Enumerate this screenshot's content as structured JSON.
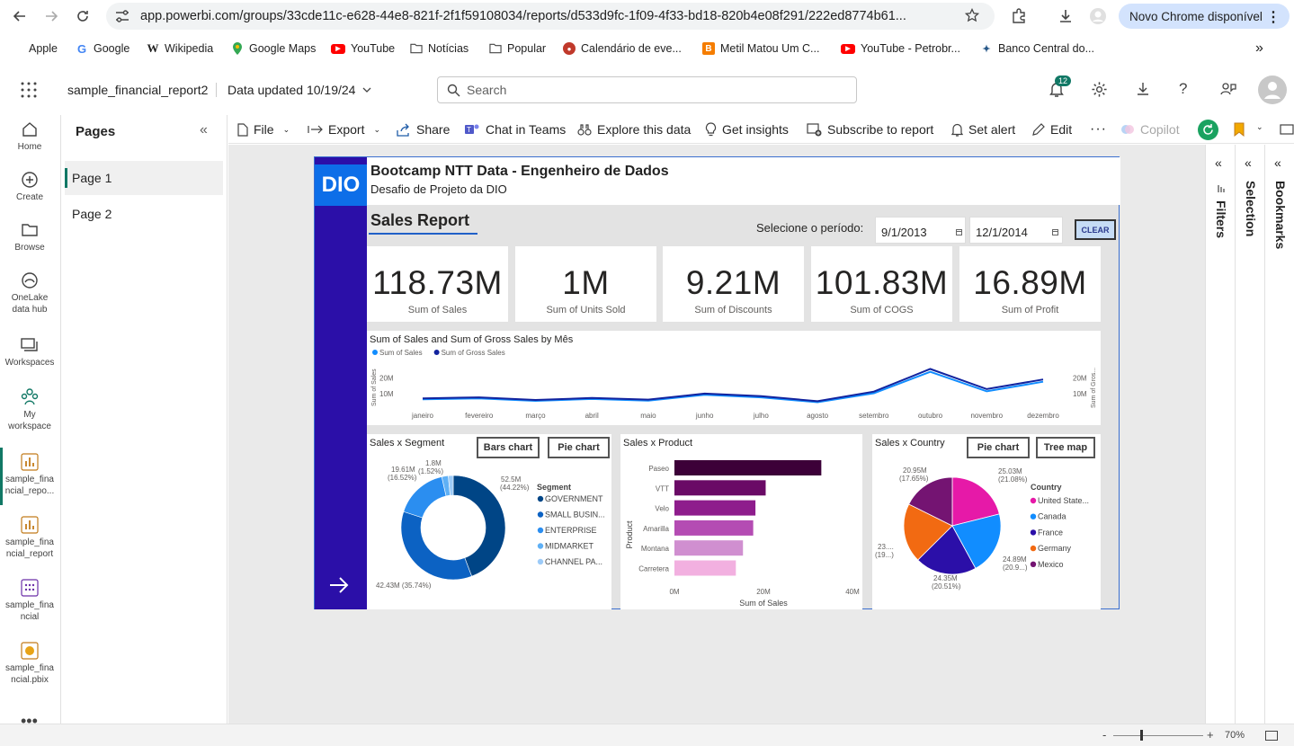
{
  "browser": {
    "url": "app.powerbi.com/groups/33cde11c-e628-44e8-821f-2f1f59108034/reports/d533d9fc-1f09-4f33-bd18-820b4e08f291/222ed8774b61...",
    "update_label": "Novo Chrome disponível",
    "bookmarks": [
      {
        "label": "Apple",
        "icon": "apple-icon"
      },
      {
        "label": "Google",
        "icon": "google-icon"
      },
      {
        "label": "Wikipedia",
        "icon": "wikipedia-icon"
      },
      {
        "label": "Google Maps",
        "icon": "maps-icon"
      },
      {
        "label": "YouTube",
        "icon": "youtube-icon"
      },
      {
        "label": "Notícias",
        "icon": "folder-icon"
      },
      {
        "label": "Popular",
        "icon": "folder-icon"
      },
      {
        "label": "Calendário de eve...",
        "icon": "calendar-icon"
      },
      {
        "label": "Metil Matou Um C...",
        "icon": "blogger-icon"
      },
      {
        "label": "YouTube - Petrobr...",
        "icon": "youtube-icon"
      },
      {
        "label": "Banco Central do...",
        "icon": "bank-icon"
      }
    ]
  },
  "header": {
    "report_name": "sample_financial_report2",
    "data_updated": "Data updated 10/19/24",
    "search_placeholder": "Search",
    "notification_count": "12"
  },
  "rail": [
    {
      "label": "Home",
      "icon": "home-icon"
    },
    {
      "label": "Create",
      "icon": "plus-circle-icon"
    },
    {
      "label": "Browse",
      "icon": "folder-icon"
    },
    {
      "label": "OneLake data hub",
      "icon": "onelake-icon"
    },
    {
      "label": "Workspaces",
      "icon": "workspaces-icon"
    },
    {
      "label": "My workspace",
      "icon": "people-icon"
    },
    {
      "label": "sample_financial_repo...",
      "icon": "report-icon"
    },
    {
      "label": "sample_financial_report",
      "icon": "report-icon"
    },
    {
      "label": "sample_financial",
      "icon": "dataset-icon"
    },
    {
      "label": "sample_financial.pbix",
      "icon": "pbix-icon"
    }
  ],
  "pages_pane": {
    "title": "Pages",
    "pages": [
      "Page 1",
      "Page 2"
    ],
    "active": 0
  },
  "toolbar": {
    "file": "File",
    "export": "Export",
    "share": "Share",
    "chat": "Chat in Teams",
    "explore": "Explore this data",
    "insights": "Get insights",
    "subscribe": "Subscribe to report",
    "alert": "Set alert",
    "edit": "Edit",
    "copilot": "Copilot"
  },
  "right_panes": [
    "Filters",
    "Selection",
    "Bookmarks"
  ],
  "status": {
    "zoom": "70%"
  },
  "report": {
    "logo": "DIO",
    "title": "Bootcamp NTT Data - Engenheiro de Dados",
    "subtitle": "Desafio de Projeto da DIO",
    "section_title": "Sales Report",
    "period_label": "Selecione o período:",
    "date_start": "9/1/2013",
    "date_end": "12/1/2014",
    "clear_label": "CLEAR",
    "kpis": [
      {
        "value": "118.73M",
        "label": "Sum of  Sales"
      },
      {
        "value": "1M",
        "label": "Sum of Units Sold"
      },
      {
        "value": "9.21M",
        "label": "Sum of Discounts"
      },
      {
        "value": "101.83M",
        "label": "Sum of COGS"
      },
      {
        "value": "16.89M",
        "label": "Sum of Profit"
      }
    ],
    "segment_buttons": [
      "Bars chart",
      "Pie chart"
    ],
    "country_buttons": [
      "Pie chart",
      "Tree map"
    ]
  },
  "chart_data": [
    {
      "type": "line",
      "title": "Sum of Sales and Sum of Gross Sales by Mês",
      "xlabel": "",
      "ylabel": "Sum of Sales",
      "y2label": "Sum of Gros...",
      "x": [
        "janeiro",
        "fevereiro",
        "março",
        "abril",
        "maio",
        "junho",
        "julho",
        "agosto",
        "setembro",
        "outubro",
        "novembro",
        "dezembro"
      ],
      "y_ticks": [
        "10M",
        "20M"
      ],
      "ylim": [
        0,
        27
      ],
      "series": [
        {
          "name": "Sum of  Sales",
          "color": "#118dff",
          "values": [
            6.6,
            7.2,
            5.6,
            6.8,
            5.8,
            9.4,
            7.8,
            4.8,
            10.4,
            23.8,
            11.6,
            17.6
          ]
        },
        {
          "name": "Sum of Gross Sales",
          "color": "#12239e",
          "values": [
            7.2,
            7.8,
            6.2,
            7.4,
            6.4,
            10.2,
            8.6,
            5.4,
            11.4,
            25.6,
            13.0,
            19.0
          ]
        }
      ]
    },
    {
      "type": "pie",
      "title": "Sales x Segment",
      "legend_title": "Segment",
      "slices": [
        {
          "name": "GOVERNMENT",
          "value": 52.5,
          "label": "52.5M",
          "pct": "(44.22%)",
          "color": "#004586"
        },
        {
          "name": "SMALL BUSIN...",
          "value": 42.43,
          "label": "42.43M (35.74%)",
          "pct": "",
          "color": "#0c62c3"
        },
        {
          "name": "ENTERPRISE",
          "value": 19.61,
          "label": "19.61M",
          "pct": "(16.52%)",
          "color": "#2b8ef0"
        },
        {
          "name": "MIDMARKET",
          "value": 2.39,
          "label": "",
          "pct": "",
          "color": "#5fb0f5"
        },
        {
          "name": "CHANNEL PA...",
          "value": 1.8,
          "label": "1.8M",
          "pct": "(1.52%)",
          "color": "#9ccbf8"
        }
      ]
    },
    {
      "type": "bar",
      "title": "Sales x Product",
      "xlabel": "Sum of Sales",
      "ylabel": "Product",
      "x_ticks": [
        "0M",
        "20M",
        "40M"
      ],
      "xlim": [
        0,
        40
      ],
      "categories": [
        "Paseo",
        "VTT",
        "Velo",
        "Amarilla",
        "Montana",
        "Carretera"
      ],
      "values": [
        33.0,
        20.5,
        18.2,
        17.7,
        15.4,
        13.8
      ],
      "colors": [
        "#3c0038",
        "#6a0a66",
        "#8e1d8c",
        "#b44cb3",
        "#d08fd0",
        "#f2b0e0"
      ]
    },
    {
      "type": "pie",
      "title": "Sales x Country",
      "legend_title": "Country",
      "slices": [
        {
          "name": "United State...",
          "value": 25.03,
          "label": "25.03M",
          "pct": "(21.08%)",
          "color": "#e619a8"
        },
        {
          "name": "Canada",
          "value": 24.89,
          "label": "24.89M",
          "pct": "(20.9...)",
          "color": "#118dff"
        },
        {
          "name": "France",
          "value": 24.35,
          "label": "24.35M",
          "pct": "(20.51%)",
          "color": "#2b0fa8"
        },
        {
          "name": "Germany",
          "value": 23.5,
          "label": "23....",
          "pct": "(19...)",
          "color": "#f26a12"
        },
        {
          "name": "Mexico",
          "value": 20.95,
          "label": "20.95M",
          "pct": "(17.65%)",
          "color": "#741472"
        }
      ]
    }
  ]
}
